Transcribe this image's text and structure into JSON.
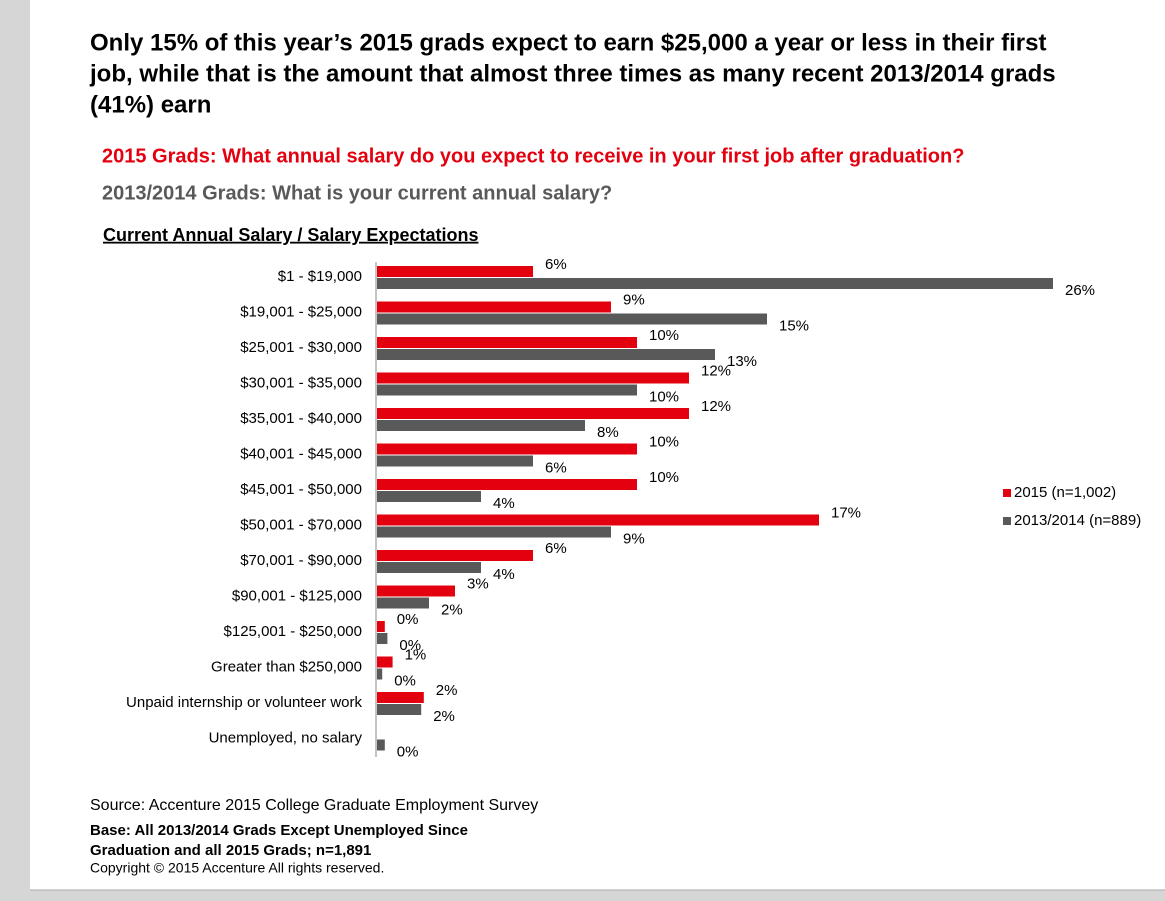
{
  "chart_data": {
    "type": "hbar",
    "title": [
      "Only 15% of this year’s 2015 grads expect to earn $25,000 a year or less in their first",
      "job, while that is the amount that almost three times as many recent 2013/2014 grads",
      "(41%) earn"
    ],
    "subtitle": "2015 Grads: What annual salary do you expect to receive in your first job after graduation?",
    "subtitle2": "2013/2014 Grads: What is your current annual salary?",
    "axis_label": "Current Annual Salary / Salary Expectations",
    "categories": [
      "$1 - $19,000",
      "$19,001 - $25,000",
      "$25,001 - $30,000",
      "$30,001 - $35,000",
      "$35,001 - $40,000",
      "$40,001 - $45,000",
      "$45,001 - $50,000",
      "$50,001 - $70,000",
      "$70,001 - $90,000",
      "$90,001 - $125,000",
      "$125,001 - $250,000",
      "Greater than $250,000",
      "Unpaid internship or volunteer work",
      "Unemployed, no salary"
    ],
    "series": [
      {
        "name": "2015 (n=1,002)",
        "color": "#e3000f",
        "values": [
          6,
          9,
          10,
          12,
          12,
          10,
          10,
          17,
          6,
          3,
          0.3,
          0.6,
          1.8,
          null
        ],
        "value_labels": [
          "6%",
          "9%",
          "10%",
          "12%",
          "12%",
          "10%",
          "10%",
          "17%",
          "6%",
          "3%",
          "0%",
          "1%",
          "2%",
          null
        ]
      },
      {
        "name": "2013/2014 (n=889)",
        "color": "#595959",
        "values": [
          26,
          15,
          13,
          10,
          8,
          6,
          4,
          9,
          4,
          2,
          0.4,
          0.2,
          1.7,
          0.3
        ],
        "value_labels": [
          "26%",
          "15%",
          "13%",
          "10%",
          "8%",
          "6%",
          "4%",
          "9%",
          "4%",
          "2%",
          "0%",
          "0%",
          "2%",
          "0%"
        ]
      }
    ],
    "legend": "right",
    "source": "Source: Accenture 2015 College Graduate Employment Survey",
    "base": [
      "Base: All 2013/2014 Grads Except Unemployed Since",
      "Graduation and all 2015 Grads; n=1,891"
    ],
    "copyright": "Copyright © 2015 Accenture  All rights reserved."
  }
}
